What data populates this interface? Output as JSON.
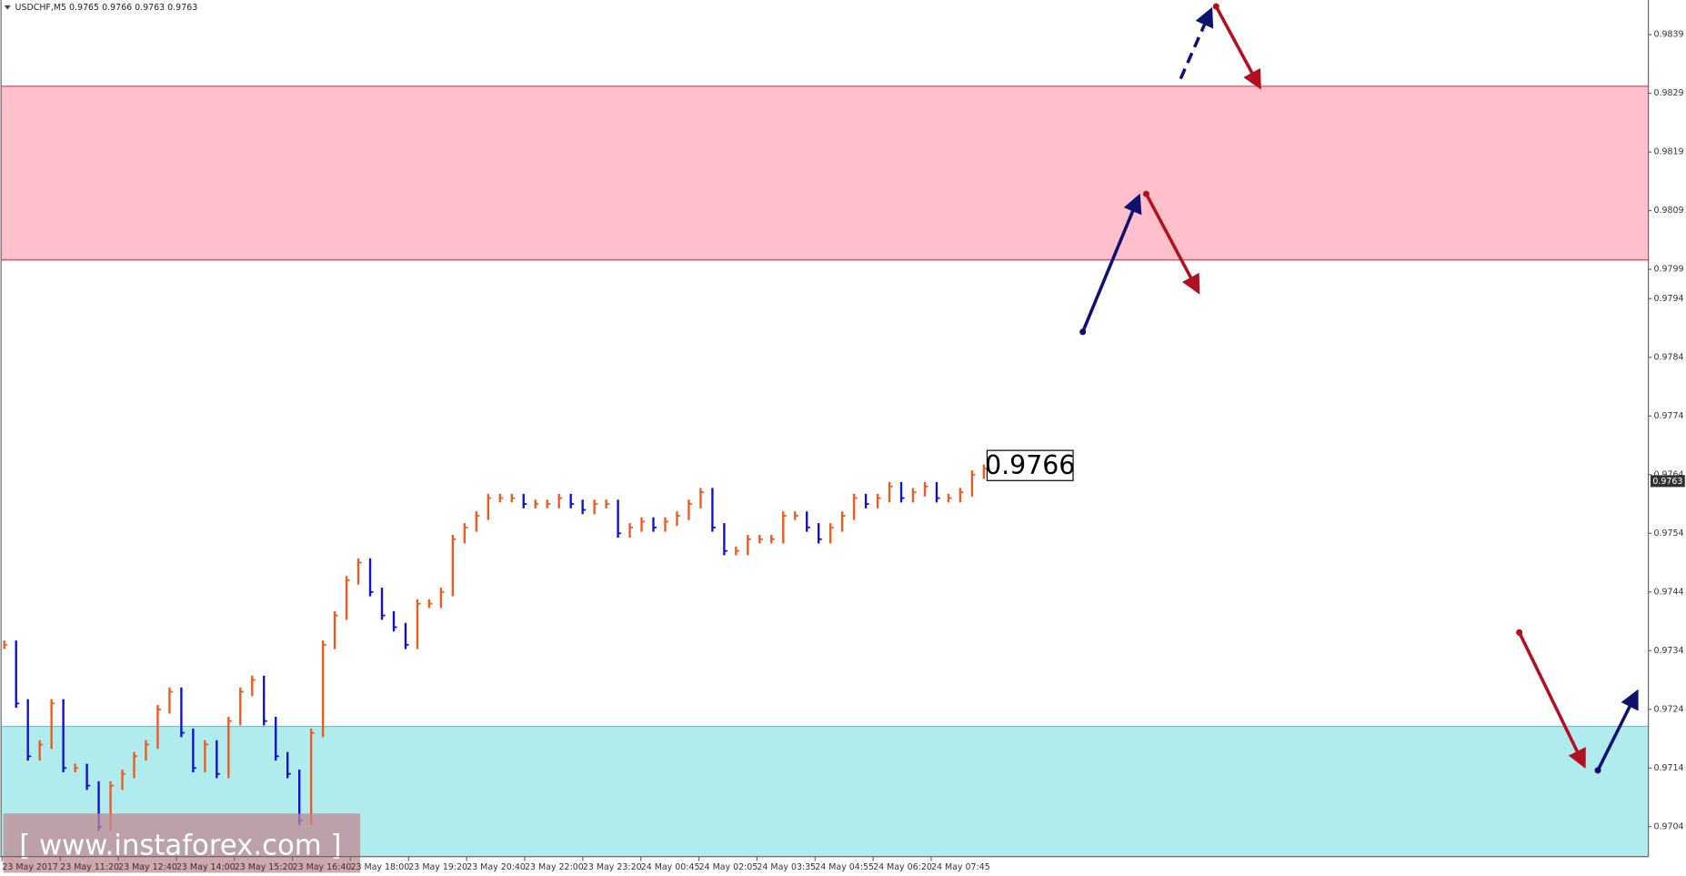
{
  "chart_data": {
    "type": "bar-range",
    "header": "USDCHF,M5  0.9765 0.9766 0.9763 0.9763",
    "price_label": "0.9766",
    "current_price_label": "0.9763",
    "watermark": "[ www.instaforex.com ]",
    "up_color": "#ee5a1e",
    "down_color": "#1010cc",
    "values": [
      0.9735,
      0.9725,
      0.9716,
      0.9718,
      0.9725,
      0.9714,
      0.9714,
      0.9711,
      0.9704,
      0.9711,
      0.9713,
      0.9716,
      0.9718,
      0.9724,
      0.9727,
      0.972,
      0.9714,
      0.9718,
      0.9713,
      0.9722,
      0.9727,
      0.9729,
      0.9722,
      0.9716,
      0.9713,
      0.9705,
      0.972,
      0.9735,
      0.974,
      0.9746,
      0.9749,
      0.9744,
      0.974,
      0.9738,
      0.9735,
      0.9742,
      0.9742,
      0.9744,
      0.9753,
      0.9755,
      0.9757,
      0.976,
      0.976,
      0.976,
      0.9759,
      0.9759,
      0.9759,
      0.976,
      0.9759,
      0.9758,
      0.9759,
      0.9759,
      0.9754,
      0.9755,
      0.9756,
      0.9755,
      0.9756,
      0.9757,
      0.9759,
      0.9761,
      0.9755,
      0.9751,
      0.9751,
      0.9753,
      0.9753,
      0.9753,
      0.9757,
      0.9757,
      0.9755,
      0.9753,
      0.9755,
      0.9757,
      0.976,
      0.9759,
      0.976,
      0.9762,
      0.976,
      0.9761,
      0.9762,
      0.976,
      0.976,
      0.9761,
      0.9764,
      0.9765
    ],
    "x_labels": [
      "23 May 2017",
      "23 May 11:20",
      "23 May 12:40",
      "23 May 14:00",
      "23 May 15:20",
      "23 May 16:40",
      "23 May 18:00",
      "23 May 19:20",
      "23 May 20:40",
      "23 May 22:00",
      "23 May 23:20",
      "24 May 00:45",
      "24 May 02:05",
      "24 May 03:35",
      "24 May 04:55",
      "24 May 06:20",
      "24 May 07:45"
    ],
    "ylim": [
      0.96989,
      0.98449
    ],
    "yticks": [
      0.9839,
      0.9829,
      0.9819,
      0.9809,
      0.9799,
      0.9794,
      0.9784,
      0.9774,
      0.9764,
      0.9754,
      0.9744,
      0.9734,
      0.9724,
      0.9714,
      0.9704
    ],
    "zones": [
      {
        "from": 0.98006,
        "to": 0.98302,
        "color": "#ffc0cb",
        "edge": "#d04050"
      },
      {
        "from": 0.96989,
        "to": 0.97211,
        "color": "#b0ecee",
        "edge": "#70c0c8"
      }
    ]
  }
}
